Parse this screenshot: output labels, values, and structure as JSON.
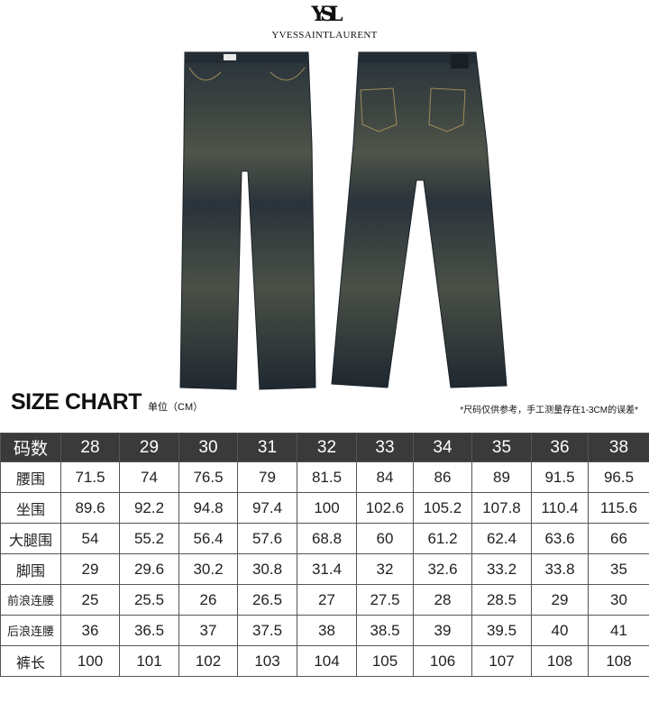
{
  "brand": {
    "monogram": "YSL",
    "wordmark": "YVESSAINTLAURENT"
  },
  "size_chart": {
    "title": "SIZE CHART",
    "unit": "单位（CM）",
    "note": "*尺码仅供参考，手工测量存在1-3CM的误差*",
    "header_label": "码数",
    "sizes": [
      "28",
      "29",
      "30",
      "31",
      "32",
      "33",
      "34",
      "35",
      "36",
      "38"
    ],
    "rows": [
      {
        "label": "腰围",
        "values": [
          "71.5",
          "74",
          "76.5",
          "79",
          "81.5",
          "84",
          "86",
          "89",
          "91.5",
          "96.5"
        ]
      },
      {
        "label": "坐围",
        "values": [
          "89.6",
          "92.2",
          "94.8",
          "97.4",
          "100",
          "102.6",
          "105.2",
          "107.8",
          "110.4",
          "115.6"
        ]
      },
      {
        "label": "大腿围",
        "values": [
          "54",
          "55.2",
          "56.4",
          "57.6",
          "68.8",
          "60",
          "61.2",
          "62.4",
          "63.6",
          "66"
        ]
      },
      {
        "label": "脚围",
        "values": [
          "29",
          "29.6",
          "30.2",
          "30.8",
          "31.4",
          "32",
          "32.6",
          "33.2",
          "33.8",
          "35"
        ]
      },
      {
        "label": "前浪连腰",
        "values": [
          "25",
          "25.5",
          "26",
          "26.5",
          "27",
          "27.5",
          "28",
          "28.5",
          "29",
          "30"
        ]
      },
      {
        "label": "后浪连腰",
        "values": [
          "36",
          "36.5",
          "37",
          "37.5",
          "38",
          "38.5",
          "39",
          "39.5",
          "40",
          "41"
        ]
      },
      {
        "label": "裤长",
        "values": [
          "100",
          "101",
          "102",
          "103",
          "104",
          "105",
          "106",
          "107",
          "108",
          "108"
        ]
      }
    ]
  },
  "colors": {
    "header_bg": "#3a3a3a",
    "denim_dark": "#1f2830",
    "denim_fade": "#6b6a4a"
  }
}
